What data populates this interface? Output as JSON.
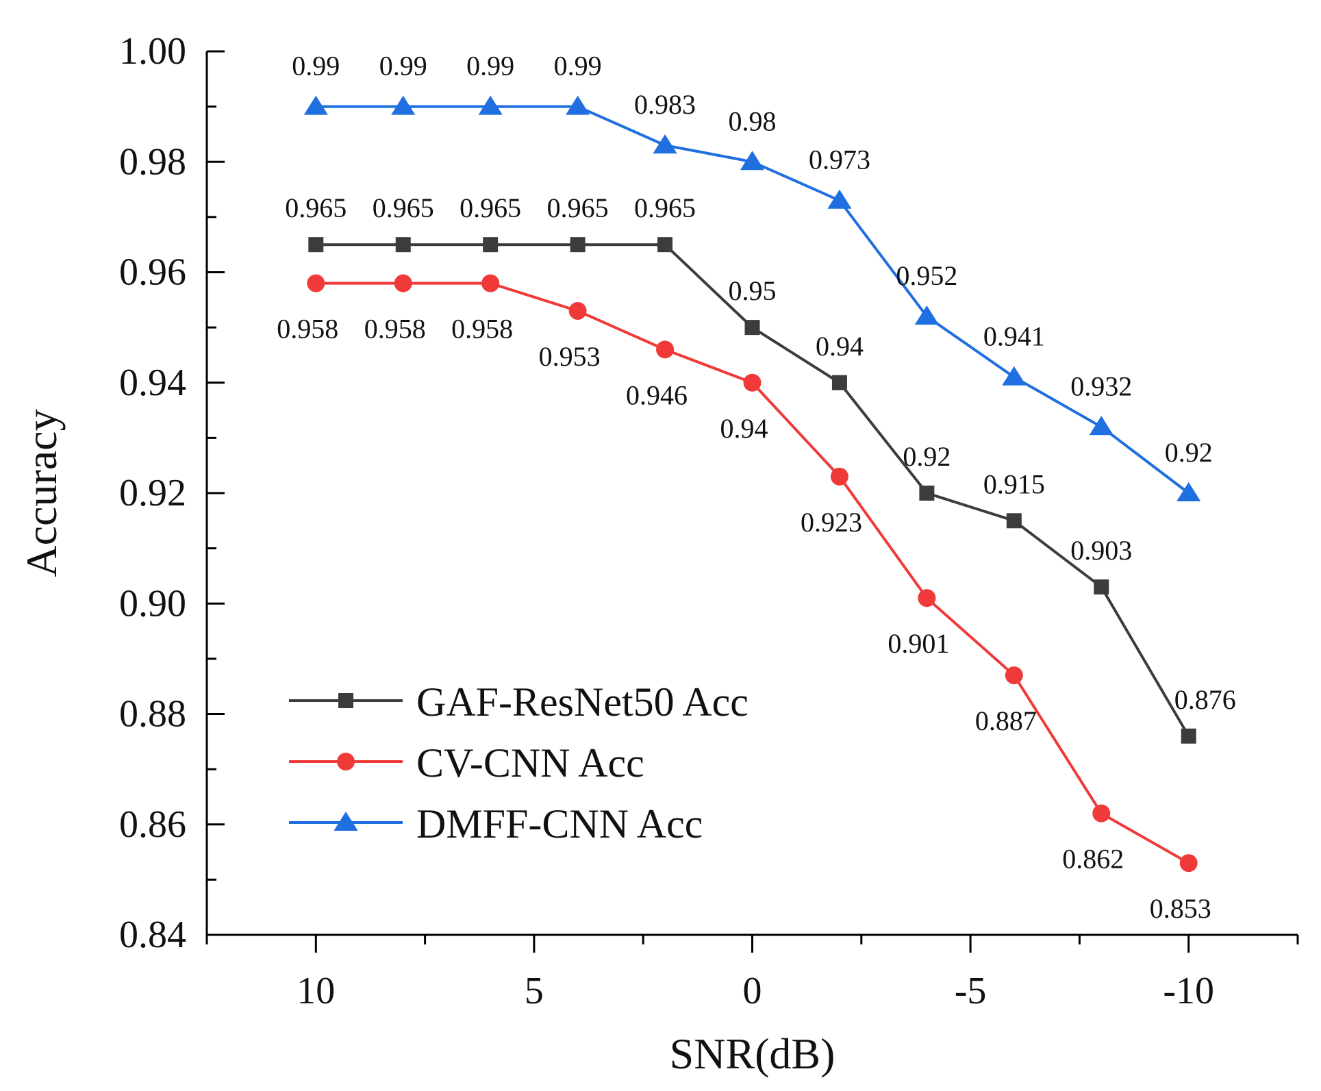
{
  "chart_data": {
    "type": "line",
    "xlabel": "SNR(dB)",
    "ylabel": "Accuracy",
    "x": [
      10,
      8,
      6,
      4,
      2,
      0,
      -2,
      -4,
      -6,
      -8,
      -10
    ],
    "xlim": [
      12.5,
      -12.5
    ],
    "ylim": [
      0.84,
      1.0
    ],
    "x_reversed": true,
    "x_ticks": [
      10,
      5,
      0,
      -5,
      -10
    ],
    "x_tick_labels": [
      "10",
      "5",
      "0",
      "-5",
      "-10"
    ],
    "y_ticks": [
      0.84,
      0.86,
      0.88,
      0.9,
      0.92,
      0.94,
      0.96,
      0.98,
      1.0
    ],
    "y_tick_labels": [
      "0.84",
      "0.86",
      "0.88",
      "0.90",
      "0.92",
      "0.94",
      "0.96",
      "0.98",
      "1.00"
    ],
    "grid": false,
    "legend_position": "bottom-left",
    "series": [
      {
        "name": "GAF-ResNet50 Acc",
        "color": "#3c3c3c",
        "marker": "square",
        "label_position": "above",
        "values": [
          0.965,
          0.965,
          0.965,
          0.965,
          0.965,
          0.95,
          0.94,
          0.92,
          0.915,
          0.903,
          0.876
        ],
        "labels": [
          "0.965",
          "0.965",
          "0.965",
          "0.965",
          "0.965",
          "0.95",
          "0.94",
          "0.92",
          "0.915",
          "0.903",
          "0.876"
        ]
      },
      {
        "name": "CV-CNN Acc",
        "color": "#f03a3a",
        "marker": "circle",
        "label_position": "below",
        "values": [
          0.958,
          0.958,
          0.958,
          0.953,
          0.946,
          0.94,
          0.923,
          0.901,
          0.887,
          0.862,
          0.853
        ],
        "labels": [
          "0.958",
          "0.958",
          "0.958",
          "0.953",
          "0.946",
          "0.94",
          "0.923",
          "0.901",
          "0.887",
          "0.862",
          "0.853"
        ]
      },
      {
        "name": "DMFF-CNN Acc",
        "color": "#1f6fe0",
        "marker": "triangle",
        "label_position": "above",
        "values": [
          0.99,
          0.99,
          0.99,
          0.99,
          0.983,
          0.98,
          0.973,
          0.952,
          0.941,
          0.932,
          0.92
        ],
        "labels": [
          "0.99",
          "0.99",
          "0.99",
          "0.99",
          "0.983",
          "0.98",
          "0.973",
          "0.952",
          "0.941",
          "0.932",
          "0.92"
        ]
      }
    ]
  }
}
